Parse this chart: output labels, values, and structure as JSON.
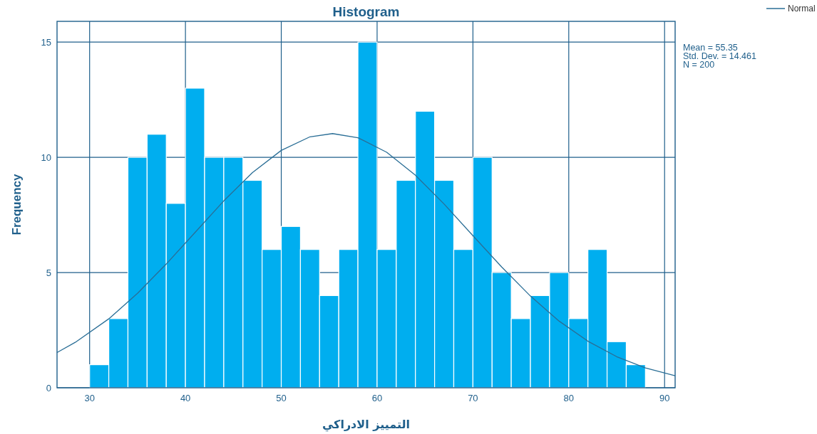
{
  "chart_data": {
    "type": "histogram",
    "title": "Histogram",
    "xlabel": "التمييز الادراكي",
    "ylabel": "Frequency",
    "series": [
      {
        "color": "#00aeef",
        "bins": [
          30,
          32,
          34,
          36,
          38,
          40,
          42,
          44,
          46,
          48,
          50,
          52,
          54,
          56,
          58,
          60,
          62,
          64,
          66,
          68,
          70,
          72,
          74,
          76,
          78,
          80,
          82,
          84,
          86,
          88
        ],
        "values": [
          1,
          3,
          10,
          11,
          8,
          13,
          10,
          10,
          9,
          6,
          7,
          6,
          4,
          6,
          15,
          6,
          9,
          12,
          9,
          6,
          10,
          5,
          3,
          4,
          5,
          3,
          6,
          2,
          1
        ]
      },
      {
        "type": "line",
        "name": "Normal",
        "color": "#2a6e96",
        "x": [
          26.6,
          28.5,
          32,
          35,
          38,
          41,
          44,
          47,
          50,
          53,
          55.35,
          58,
          61,
          64,
          67,
          70,
          73,
          76,
          79,
          82,
          85,
          88,
          91.1
        ],
        "values": [
          1.53,
          1.97,
          2.99,
          4.1,
          5.37,
          6.74,
          8.11,
          9.34,
          10.3,
          10.89,
          11.03,
          10.85,
          10.22,
          9.22,
          7.97,
          6.6,
          5.24,
          3.98,
          2.89,
          2.02,
          1.35,
          0.86,
          0.52
        ]
      }
    ],
    "annotations": [
      "Mean = 55.35",
      "Std. Dev. = 14.461",
      "N = 200"
    ],
    "xlim": [
      26.6,
      91.1
    ],
    "ylim": [
      0,
      15.9
    ],
    "xticks": [
      30,
      40,
      50,
      60,
      70,
      80,
      90
    ],
    "yticks": [
      0,
      5,
      10,
      15
    ],
    "grid": true,
    "legend": "top right"
  }
}
